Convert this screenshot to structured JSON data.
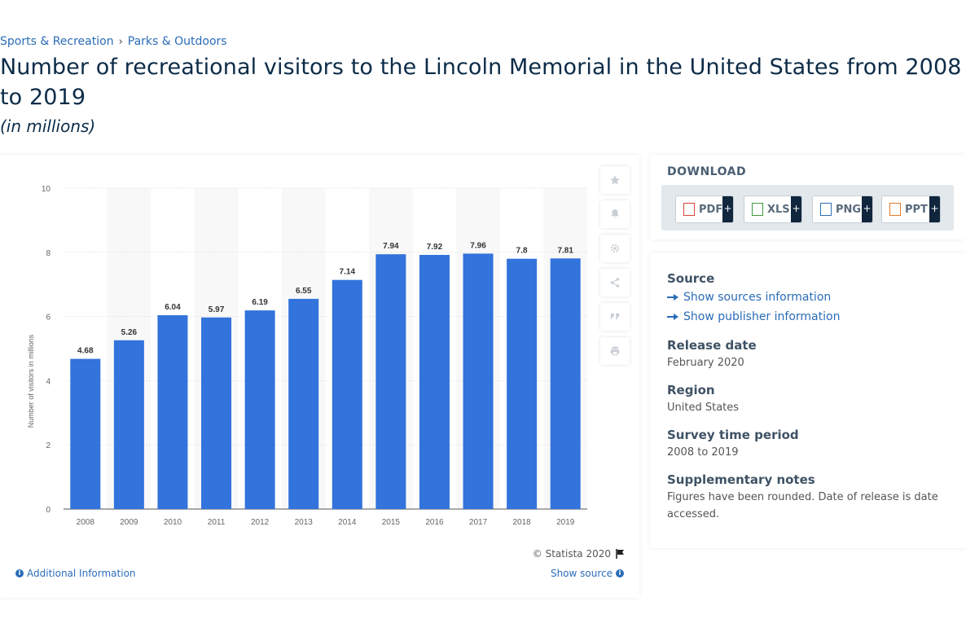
{
  "breadcrumb": {
    "items": [
      "Sports & Recreation",
      "Parks & Outdoors"
    ],
    "separator": "›"
  },
  "page": {
    "title": "Number of recreational visitors to the Lincoln Memorial in the United States from 2008 to 2019",
    "subtitle": "(in millions)"
  },
  "chart_data": {
    "type": "bar",
    "categories": [
      "2008",
      "2009",
      "2010",
      "2011",
      "2012",
      "2013",
      "2014",
      "2015",
      "2016",
      "2017",
      "2018",
      "2019"
    ],
    "values": [
      4.68,
      5.26,
      6.04,
      5.97,
      6.19,
      6.55,
      7.14,
      7.94,
      7.92,
      7.96,
      7.8,
      7.81
    ],
    "value_labels": [
      "4.68",
      "5.26",
      "6.04",
      "5.97",
      "6.19",
      "6.55",
      "7.14",
      "7.94",
      "7.92",
      "7.96",
      "7.8",
      "7.81"
    ],
    "ylabel": "Number of visitors in millions",
    "xlabel": "",
    "ylim": [
      0,
      10
    ],
    "yticks": [
      "0",
      "2",
      "4",
      "6",
      "8",
      "10"
    ],
    "grid": true,
    "colors": {
      "bar": "#3273dc",
      "band": "#f8f8f8",
      "grid": "#dddddd"
    }
  },
  "toolbar": {
    "icons": [
      "star-icon",
      "bell-icon",
      "gear-icon",
      "share-icon",
      "quote-icon",
      "print-icon"
    ]
  },
  "footer": {
    "copyright": "© Statista 2020",
    "additional": "Additional Information",
    "show_source": "Show source"
  },
  "download": {
    "title": "DOWNLOAD",
    "formats": [
      {
        "label": "PDF",
        "plus": "+",
        "color": "#d9453a"
      },
      {
        "label": "XLS",
        "plus": "+",
        "color": "#3f9a3f"
      },
      {
        "label": "PNG",
        "plus": "+",
        "color": "#2f6fb5"
      },
      {
        "label": "PPT",
        "plus": "+",
        "color": "#e07a2a"
      }
    ]
  },
  "meta": {
    "source_heading": "Source",
    "show_sources": "Show sources information",
    "show_publisher": "Show publisher information",
    "release_heading": "Release date",
    "release_value": "February 2020",
    "region_heading": "Region",
    "region_value": "United States",
    "survey_heading": "Survey time period",
    "survey_value": "2008 to 2019",
    "notes_heading": "Supplementary notes",
    "notes_value": "Figures have been rounded. Date of release is date accessed."
  }
}
